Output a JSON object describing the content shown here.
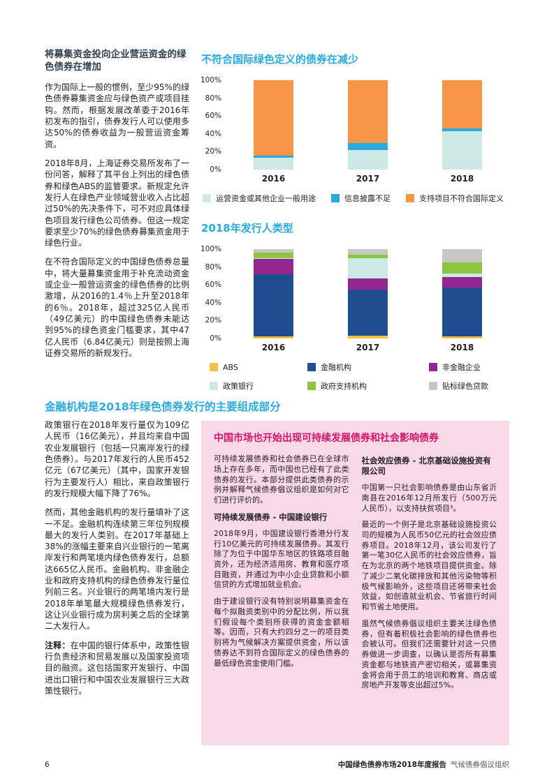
{
  "header_left": {
    "heading": "将募集资金投向企业营运资金的绿色债券在增加",
    "paragraphs": [
      "作为国际上一般的惯例，至少95%的绿色债券募集资金应与绿色资产或项目挂钩。然而，根据发展改革委于2016年初发布的指引，债券发行人可以使用多达50%的债券收益为一般营运资金筹资。",
      "2018年8月，上海证券交易所发布了一份问答，解释了其平台上列出的绿色债券和绿色ABS的监管要求。新规定允许发行人在绿色产业领域营业收入占比超过50%的先决条件下，可不对应具体绿色项目发行绿色公司债券。但这一规定要求至少70%的绿色债券募集资金用于绿色行业。",
      "在不符合国际定义的中国绿色债券总量中，将大量募集资金用于补充流动资金或企业一般营运资金的绿色债券的比例激增，从2016的1.4％上升至2018年的6％。2018年，超过325亿人民币（49亿美元）的中国绿色债券未能达到95%的绿色资金门槛要求，其中47亿人民币（6.84亿美元）则是按照上海证券交易所的新规发行。"
    ]
  },
  "section_financial": {
    "heading": "金融机构是2018年绿色债券发行的主要组成部分",
    "paragraphs": [
      "政策银行在2018年发行量仅为109亿人民币（16亿美元），并且均来自中国农业发展银行（包括一只离岸发行的绿色债券）。与2017年发行的人民币452亿元（67亿美元）（其中，国家开发银行为主要发行人）相比，来自政策银行的发行规模大幅下降了76%。",
      "然而，其他金融机构的发行量填补了这一不足。金融机构连续第三年位列规模最大的发行人类别。在2017年基础上38%的涨幅主要来自兴业银行的一笔离岸发行和两笔境内绿色债券发行，总额达665亿人民币。金融机构、非金融企业和政府支持机构的绿色债券发行量位列前三名。兴业银行的两笔境内发行是2018年单笔最大规模绿色债券发行，这让兴业银行成为房利美之后的全球第二大发行人。"
    ],
    "note_label": "注释：",
    "note_text": "在中国的银行体系中，政策性银行负责经济和贸易发展以及国家投资项目的融资。这包括国家开发银行、中国进出口银行和中国农业发展银行三大政策性银行。"
  },
  "pink_box": {
    "title": "中国市场也开始出现可持续发展债券和社会影响债券",
    "left": {
      "intro": "可持续发展债券和社会债券已在全球市场上存在多年，而中国也已经有了此类债券的发行。本部分提供此类债券的示例并解释气候债券倡议组织是如何对它们进行评价的。",
      "subheading": "可持续发展债券 - 中国建设银行",
      "paragraphs": [
        "2018年9月，中国建设银行香港分行发行10亿美元的可持续发展债券。其发行除了为位于中国华东地区的铁路项目融资外，还为经济适用房、教育和医疗项目融资，并通过为中小企业贷款和小额信贷的方式增加就业机会。",
        "由于建设银行没有特别说明募集资金在每个拟融资类别中的分配比例，所以我们假设每个类别所获得的资金金额相等。因而，只有大约四分之一的项目类别将为气候解决方案提供资金，所以该债券达不到符合国际定义的绿色债券的最低绿色资金使用门槛。"
      ]
    },
    "right": {
      "subheading": "社会效应债券 - 北京基础设施投资有限公司",
      "paragraphs": [
        "中国第一只社会影响债券是由山东省沂南县在2016年12月所发行（500万元人民币），以支持扶贫项目³。",
        "最近的一个例子是北京基础设施投资公司的规模为人民币50亿元的社会效应债券项目。2018年12月，该公司发行了第一笔30亿人民币的社会效应债券，旨在为北京的两个地铁项目提供资金。除了减少二氧化碳排放和其他污染物等积极气候影响外，这些项目还将带来社会效益，如创造就业机会、节省旅行时间和节省土地使用。",
        "虽然气候债券倡议组织主要关注绿色债券，但有着积极社会影响的绿色债券也会被认可。但我们还需要针对这一只债券做进一步调查，以确认是否所有募集资金都与地铁资产密切相关，或募集资金将会用于员工的培训和教育、商店或房地产开发等支出超过5%。"
      ]
    }
  },
  "footer": {
    "page_number": "6",
    "report_title": "中国绿色债券市场2018年度报告",
    "organization": "气候债券倡议组织"
  },
  "colors": {
    "accent_blue": "#29abe2",
    "pink_title": "#d4146a",
    "pink_background": "#f8d9e5"
  },
  "chart_data": [
    {
      "type": "bar",
      "stacked": true,
      "title": "不符合国际绿色定义的债券在减少",
      "categories": [
        "2016",
        "2017",
        "2018"
      ],
      "y_ticks": [
        "0%",
        "20%",
        "40%",
        "60%",
        "80%",
        "100%"
      ],
      "ylim": [
        0,
        100
      ],
      "grid": false,
      "legend_position": "bottom",
      "legend_columns": 0,
      "series": [
        {
          "name": "运营资金或其他企业一般用途",
          "color": "#cde9e5",
          "values": [
            13,
            22,
            43
          ]
        },
        {
          "name": "信息披露不足",
          "color": "#29abe2",
          "values": [
            3,
            8,
            3
          ]
        },
        {
          "name": "支持项目不符合国际定义",
          "color": "#f79646",
          "values": [
            84,
            70,
            54
          ]
        }
      ]
    },
    {
      "type": "bar",
      "stacked": true,
      "title": "2018年发行人类型",
      "categories": [
        "2016",
        "2017",
        "2018"
      ],
      "y_ticks": [
        "0%",
        "20%",
        "40%",
        "60%",
        "80%",
        "100%"
      ],
      "ylim": [
        0,
        100
      ],
      "grid": false,
      "legend_position": "bottom",
      "legend_columns": 3,
      "series": [
        {
          "name": "ABS",
          "color": "#f6c143",
          "values": [
            2,
            3,
            2
          ]
        },
        {
          "name": "金融机构",
          "color": "#1f4e8f",
          "values": [
            70,
            52,
            55
          ]
        },
        {
          "name": "非金融企业",
          "color": "#92278f",
          "values": [
            17,
            12,
            12
          ]
        },
        {
          "name": "政策银行",
          "color": "#cde9e5",
          "values": [
            1,
            23,
            4
          ]
        },
        {
          "name": "政府支持机构",
          "color": "#8cc63e",
          "values": [
            6,
            4,
            12
          ]
        },
        {
          "name": "贴标绿色贷款",
          "color": "#c7c7c3",
          "values": [
            4,
            6,
            15
          ]
        }
      ]
    }
  ]
}
